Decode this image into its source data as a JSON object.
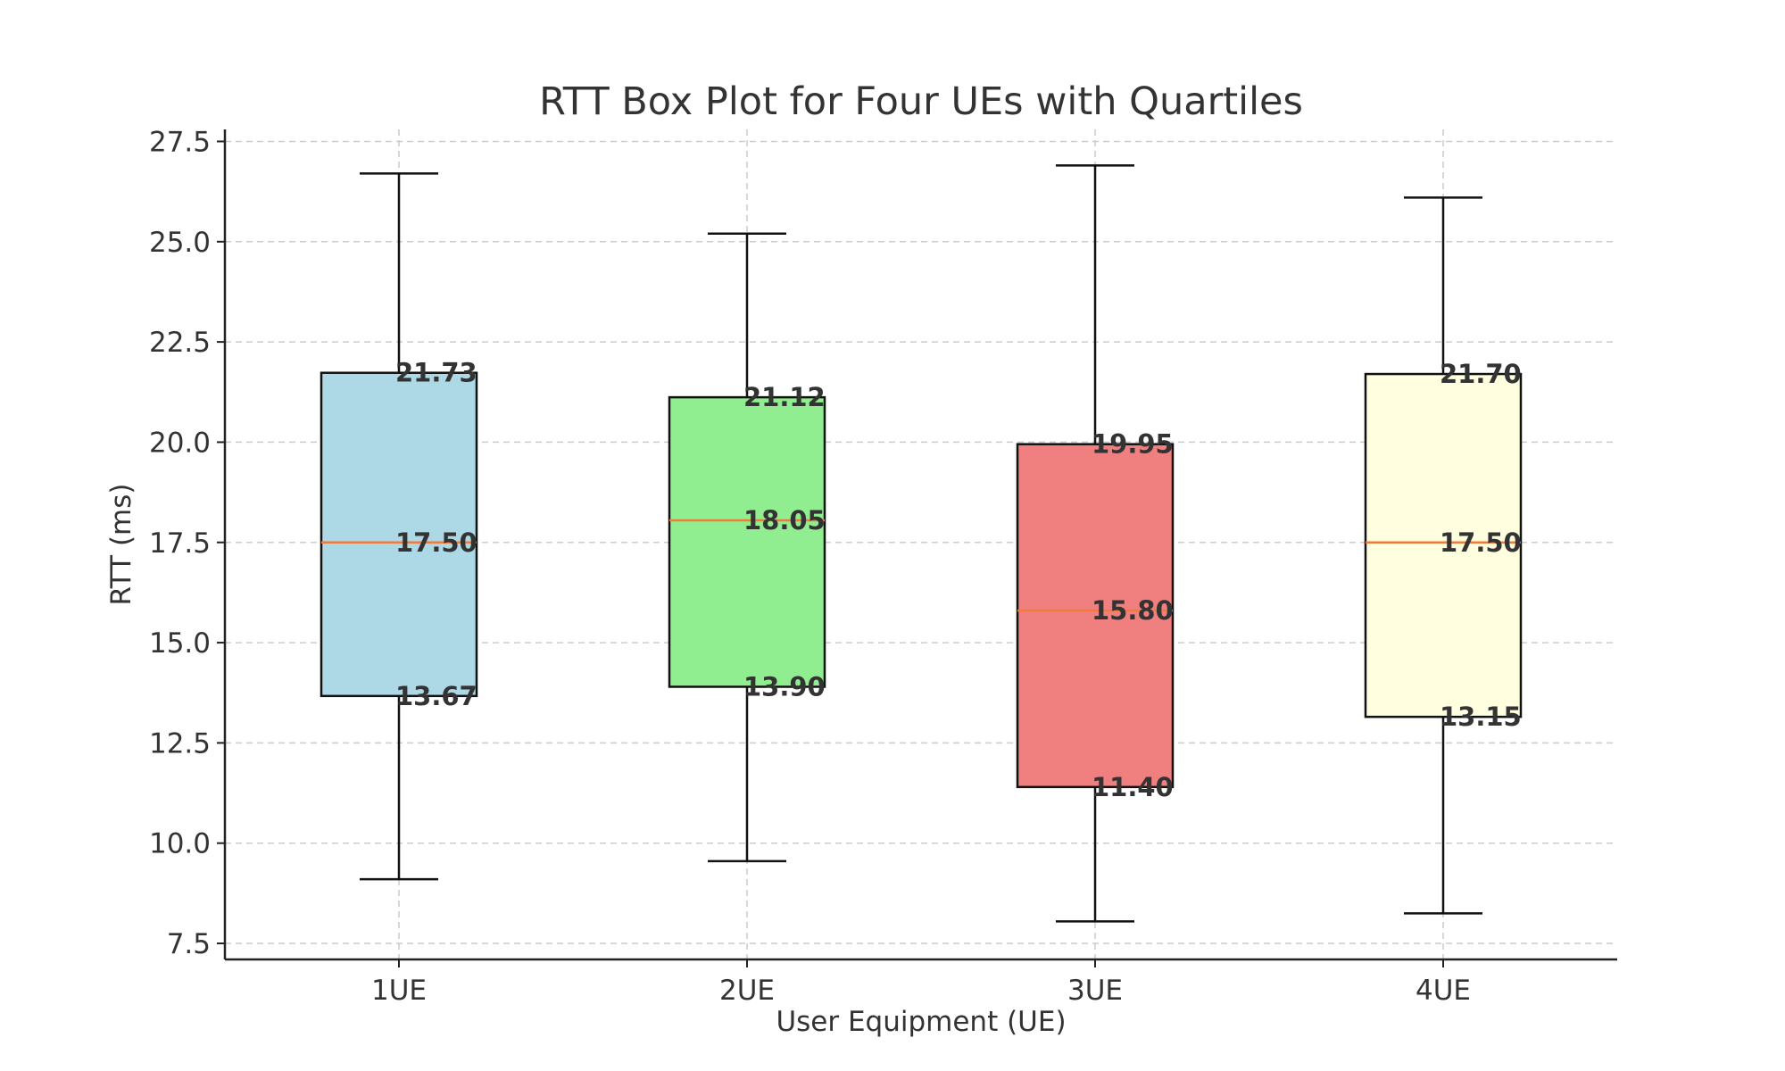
{
  "chart_data": {
    "type": "box",
    "title": "RTT Box Plot for Four UEs with Quartiles",
    "xlabel": "User Equipment (UE)",
    "ylabel": "RTT (ms)",
    "ylim": [
      7.1,
      27.8
    ],
    "yticks": [
      7.5,
      10.0,
      12.5,
      15.0,
      17.5,
      20.0,
      22.5,
      25.0,
      27.5
    ],
    "ytick_labels": [
      "7.5",
      "10.0",
      "12.5",
      "15.0",
      "17.5",
      "20.0",
      "22.5",
      "25.0",
      "27.5"
    ],
    "grid": true,
    "median_color": "#f47a3a",
    "categories": [
      "1UE",
      "2UE",
      "3UE",
      "4UE"
    ],
    "boxes": [
      {
        "label": "1UE",
        "whisker_low": 9.1,
        "q1": 13.67,
        "median": 17.5,
        "q3": 21.73,
        "whisker_high": 26.7,
        "color": "#add8e6",
        "q1_label": "13.67",
        "median_label": "17.50",
        "q3_label": "21.73"
      },
      {
        "label": "2UE",
        "whisker_low": 9.55,
        "q1": 13.9,
        "median": 18.05,
        "q3": 21.12,
        "whisker_high": 25.2,
        "color": "#90ee90",
        "q1_label": "13.90",
        "median_label": "18.05",
        "q3_label": "21.12"
      },
      {
        "label": "3UE",
        "whisker_low": 8.05,
        "q1": 11.4,
        "median": 15.8,
        "q3": 19.95,
        "whisker_high": 26.9,
        "color": "#f08080",
        "q1_label": "11.40",
        "median_label": "15.80",
        "q3_label": "19.95"
      },
      {
        "label": "4UE",
        "whisker_low": 8.25,
        "q1": 13.15,
        "median": 17.5,
        "q3": 21.7,
        "whisker_high": 26.1,
        "color": "#ffffe0",
        "q1_label": "13.15",
        "median_label": "17.50",
        "q3_label": "21.70"
      }
    ]
  }
}
